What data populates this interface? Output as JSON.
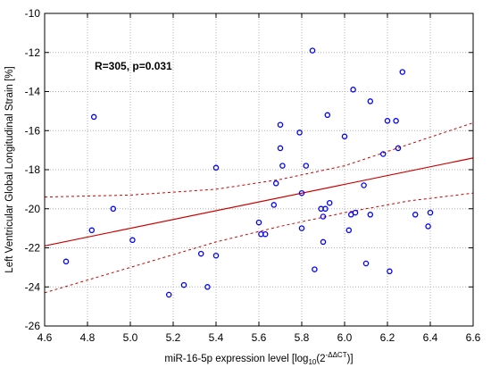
{
  "chart_data": {
    "type": "scatter",
    "xlabel_prefix": "miR-16-5p expression level [log",
    "xlabel_sub": "10",
    "xlabel_mid": "(2",
    "xlabel_sup": "-ΔΔCT",
    "xlabel_suffix": ")]",
    "ylabel": "Left Ventricular Global Longitudinal Strain [%]",
    "annotation": "R=305, p=0.031",
    "xlim": [
      4.6,
      6.6
    ],
    "ylim": [
      -26,
      -10
    ],
    "xticks": [
      4.6,
      4.8,
      5.0,
      5.2,
      5.4,
      5.6,
      5.8,
      6.0,
      6.2,
      6.4,
      6.6
    ],
    "yticks": [
      -10,
      -12,
      -14,
      -16,
      -18,
      -20,
      -22,
      -24,
      -26
    ],
    "grid": true,
    "point_color": "#0000ff",
    "fit_color": "#cc0000",
    "points": [
      [
        4.7,
        -22.7
      ],
      [
        4.82,
        -21.1
      ],
      [
        4.83,
        -15.3
      ],
      [
        4.92,
        -20.0
      ],
      [
        5.01,
        -21.6
      ],
      [
        5.18,
        -24.4
      ],
      [
        5.25,
        -23.9
      ],
      [
        5.33,
        -22.3
      ],
      [
        5.36,
        -24.0
      ],
      [
        5.4,
        -22.4
      ],
      [
        5.4,
        -17.9
      ],
      [
        5.6,
        -20.7
      ],
      [
        5.61,
        -21.3
      ],
      [
        5.63,
        -21.3
      ],
      [
        5.67,
        -19.8
      ],
      [
        5.68,
        -18.7
      ],
      [
        5.7,
        -16.9
      ],
      [
        5.7,
        -15.7
      ],
      [
        5.71,
        -17.8
      ],
      [
        5.79,
        -16.1
      ],
      [
        5.8,
        -19.2
      ],
      [
        5.8,
        -21.0
      ],
      [
        5.82,
        -17.8
      ],
      [
        5.85,
        -11.9
      ],
      [
        5.86,
        -23.1
      ],
      [
        5.89,
        -20.0
      ],
      [
        5.9,
        -20.4
      ],
      [
        5.9,
        -21.7
      ],
      [
        5.91,
        -20.0
      ],
      [
        5.92,
        -15.2
      ],
      [
        5.93,
        -19.7
      ],
      [
        6.0,
        -16.3
      ],
      [
        6.02,
        -21.1
      ],
      [
        6.03,
        -20.3
      ],
      [
        6.04,
        -13.9
      ],
      [
        6.05,
        -20.2
      ],
      [
        6.09,
        -18.8
      ],
      [
        6.1,
        -22.8
      ],
      [
        6.12,
        -14.5
      ],
      [
        6.12,
        -20.3
      ],
      [
        6.18,
        -17.2
      ],
      [
        6.2,
        -15.5
      ],
      [
        6.21,
        -23.2
      ],
      [
        6.24,
        -15.5
      ],
      [
        6.25,
        -16.9
      ],
      [
        6.27,
        -13.0
      ],
      [
        6.33,
        -20.3
      ],
      [
        6.39,
        -20.9
      ],
      [
        6.4,
        -20.2
      ]
    ],
    "regression_line": [
      [
        4.6,
        -21.9
      ],
      [
        6.6,
        -17.4
      ]
    ],
    "confidence_upper": [
      [
        4.6,
        -19.4
      ],
      [
        5.0,
        -19.3
      ],
      [
        5.4,
        -19.0
      ],
      [
        5.7,
        -18.5
      ],
      [
        6.0,
        -17.8
      ],
      [
        6.3,
        -16.7
      ],
      [
        6.6,
        -15.6
      ]
    ],
    "confidence_lower": [
      [
        4.6,
        -24.3
      ],
      [
        5.0,
        -23.0
      ],
      [
        5.4,
        -21.7
      ],
      [
        5.7,
        -20.9
      ],
      [
        6.0,
        -20.2
      ],
      [
        6.3,
        -19.6
      ],
      [
        6.6,
        -19.2
      ]
    ]
  }
}
